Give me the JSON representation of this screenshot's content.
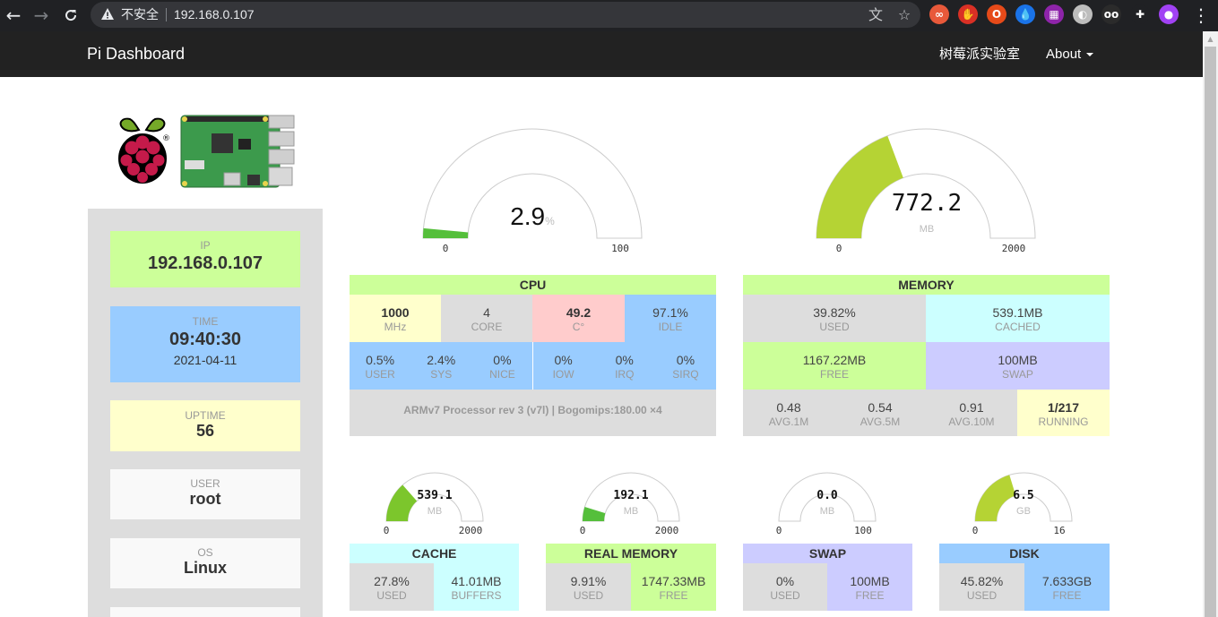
{
  "browser": {
    "security_label": "不安全",
    "url": "192.168.0.107",
    "back_glyph": "←",
    "forward_glyph": "→",
    "reload_glyph": "C",
    "translate_glyph": "文",
    "star_glyph": "☆",
    "menu_glyph": "⋮",
    "extensions": [
      {
        "name": "ext-infinity-icon",
        "glyph": "∞",
        "color": "#e8593a"
      },
      {
        "name": "ext-hand-icon",
        "glyph": "✋",
        "color": "#d93025"
      },
      {
        "name": "ext-office-icon",
        "glyph": "O",
        "color": "#e64a19"
      },
      {
        "name": "ext-drop-icon",
        "glyph": "💧",
        "color": "#1a73e8"
      },
      {
        "name": "ext-palette-icon",
        "glyph": "▦",
        "color": "#8e24aa"
      },
      {
        "name": "ext-bulb-icon",
        "glyph": "◐",
        "color": "#bdbdbd"
      },
      {
        "name": "ext-glasses-icon",
        "glyph": "oo",
        "color": "#2b2b2b"
      },
      {
        "name": "extensions-puzzle-icon",
        "glyph": "✚",
        "color": "#202124"
      },
      {
        "name": "profile-avatar-icon",
        "glyph": "●",
        "color": "#a142f4"
      }
    ]
  },
  "navbar": {
    "brand": "Pi Dashboard",
    "lab_link": "树莓派实验室",
    "about_link": "About"
  },
  "sidebar": {
    "ip": {
      "label": "IP",
      "value": "192.168.0.107",
      "color": "#ccff99"
    },
    "time": {
      "label": "TIME",
      "value": "09:40:30",
      "date": "2021-04-11",
      "color": "#99ccff"
    },
    "uptime": {
      "label": "UPTIME",
      "value": "56",
      "color": "#ffffcc"
    },
    "user": {
      "label": "USER",
      "value": "root",
      "color": "#f9f9f9"
    },
    "os": {
      "label": "OS",
      "value": "Linux",
      "color": "#f9f9f9"
    }
  },
  "cpu_gauge": {
    "value": "2.9",
    "unit": "%",
    "min": "0",
    "max": "100",
    "fraction": 0.029,
    "color": "#55bf3b"
  },
  "memory_gauge": {
    "value": "772.2",
    "unit": "MB",
    "min": "0",
    "max": "2000",
    "fraction": 0.3861,
    "color": "#b5d334"
  },
  "cpu": {
    "title": "CPU",
    "freq": {
      "value": "1000",
      "label": "MHz"
    },
    "cores": {
      "value": "4",
      "label": "CORE"
    },
    "temp": {
      "value": "49.2",
      "label": "C°"
    },
    "idle": {
      "value": "97.1%",
      "label": "IDLE"
    },
    "stats": [
      {
        "value": "0.5%",
        "label": "USER"
      },
      {
        "value": "2.4%",
        "label": "SYS"
      },
      {
        "value": "0%",
        "label": "NICE"
      },
      {
        "value": "0%",
        "label": "IOW"
      },
      {
        "value": "0%",
        "label": "IRQ"
      },
      {
        "value": "0%",
        "label": "SIRQ"
      }
    ],
    "model": "ARMv7 Processor rev 3 (v7l) | Bogomips:180.00 ×4"
  },
  "memory": {
    "title": "MEMORY",
    "used": {
      "value": "39.82%",
      "label": "USED"
    },
    "cached": {
      "value": "539.1MB",
      "label": "CACHED"
    },
    "free": {
      "value": "1167.22MB",
      "label": "FREE"
    },
    "swap": {
      "value": "100MB",
      "label": "SWAP"
    },
    "loads": [
      {
        "value": "0.48",
        "label": "AVG.1M"
      },
      {
        "value": "0.54",
        "label": "AVG.5M"
      },
      {
        "value": "0.91",
        "label": "AVG.10M"
      },
      {
        "value": "1/217",
        "label": "RUNNING"
      }
    ]
  },
  "small_gauges": [
    {
      "value": "539.1",
      "unit": "MB",
      "min": "0",
      "max": "2000",
      "fraction": 0.2696,
      "color": "#7cc62c"
    },
    {
      "value": "192.1",
      "unit": "MB",
      "min": "0",
      "max": "2000",
      "fraction": 0.096,
      "color": "#55bf3b"
    },
    {
      "value": "0.0",
      "unit": "MB",
      "min": "0",
      "max": "100",
      "fraction": 0.0,
      "color": "#55bf3b"
    },
    {
      "value": "6.5",
      "unit": "GB",
      "min": "0",
      "max": "16",
      "fraction": 0.406,
      "color": "#b5d334"
    }
  ],
  "cache": {
    "title": "CACHE",
    "used": {
      "value": "27.8%",
      "label": "USED"
    },
    "buffers": {
      "value": "41.01MB",
      "label": "BUFFERS"
    }
  },
  "real_memory": {
    "title": "REAL MEMORY",
    "used": {
      "value": "9.91%",
      "label": "USED"
    },
    "free": {
      "value": "1747.33MB",
      "label": "FREE"
    }
  },
  "swap": {
    "title": "SWAP",
    "used": {
      "value": "0%",
      "label": "USED"
    },
    "free": {
      "value": "100MB",
      "label": "FREE"
    }
  },
  "disk": {
    "title": "DISK",
    "used": {
      "value": "45.82%",
      "label": "USED"
    },
    "free": {
      "value": "7.633GB",
      "label": "FREE"
    }
  },
  "colors": {
    "green": "#ccff99",
    "blue": "#99ccff",
    "yellow": "#ffffcc",
    "red": "#ffcccc",
    "gray": "#dddddd",
    "cyan": "#ccffff",
    "lavender": "#ccccff"
  }
}
